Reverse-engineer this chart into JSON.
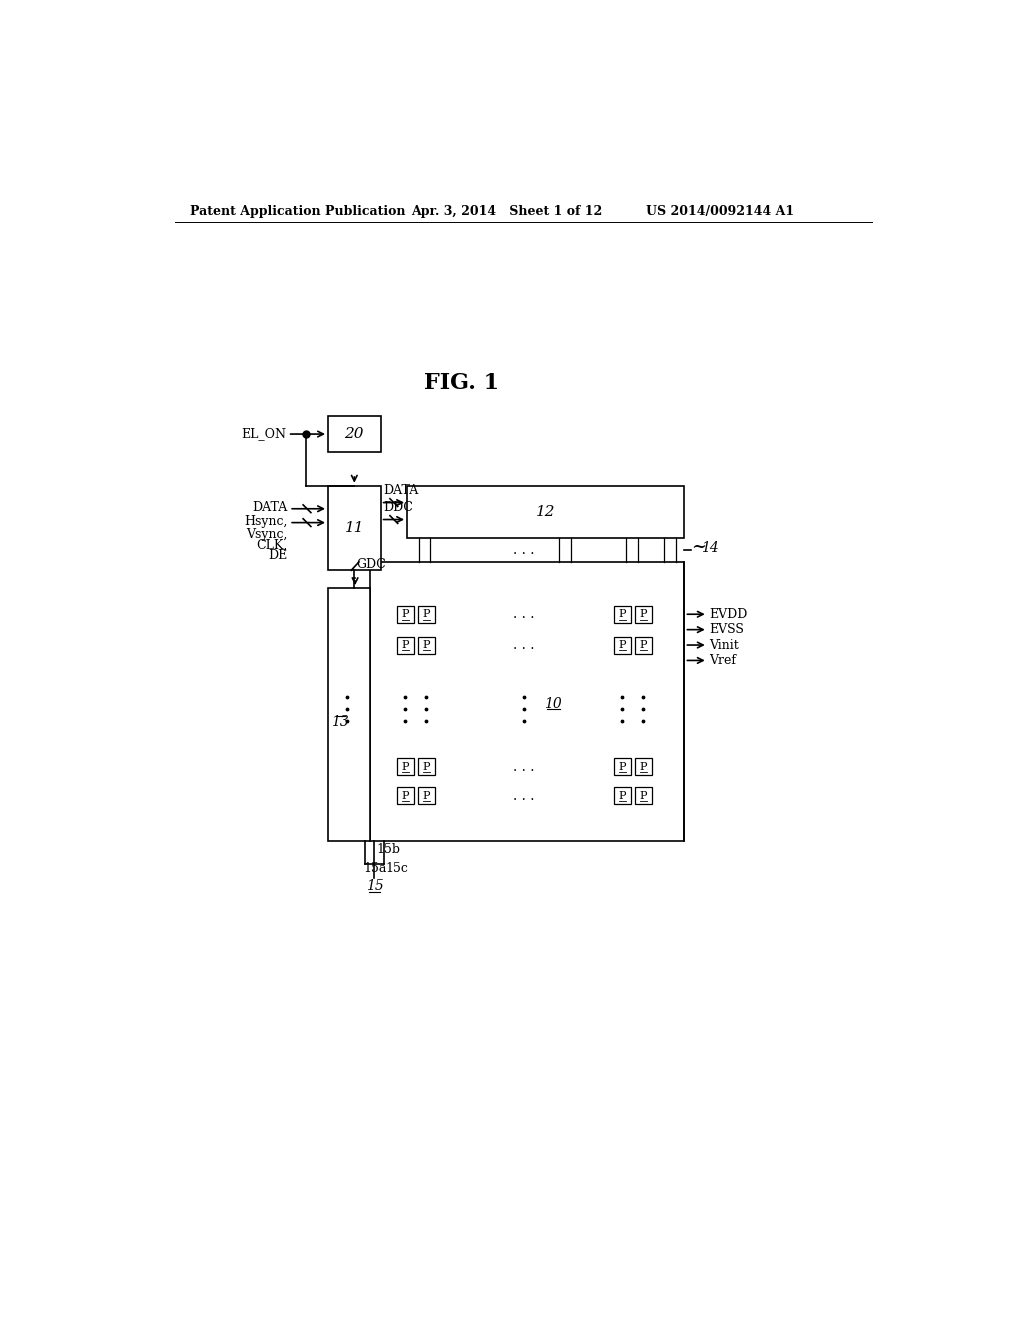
{
  "bg_color": "#ffffff",
  "header_left": "Patent Application Publication",
  "header_mid": "Apr. 3, 2014   Sheet 1 of 12",
  "header_right": "US 2014/0092144 A1",
  "fig_title": "FIG. 1",
  "box20_label": "20",
  "box11_label": "11",
  "box12_label": "12",
  "box13_label": "13",
  "box10_label": "10",
  "label_el_on": "EL_ON",
  "label_data": "DATA",
  "label_hsync": "Hsync,",
  "label_vsync": "Vsync,",
  "label_clk": "CLK,",
  "label_de": "DE",
  "label_data_bus": "DATA",
  "label_gdc": "GDC",
  "label_ddc": "DDC",
  "label_14": "14",
  "label_evdd": "EVDD",
  "label_evss": "EVSS",
  "label_vinit": "Vinit",
  "label_vref": "Vref",
  "label_15b": "15b",
  "label_15a": "15a",
  "label_15c": "15c",
  "label_15": "15"
}
